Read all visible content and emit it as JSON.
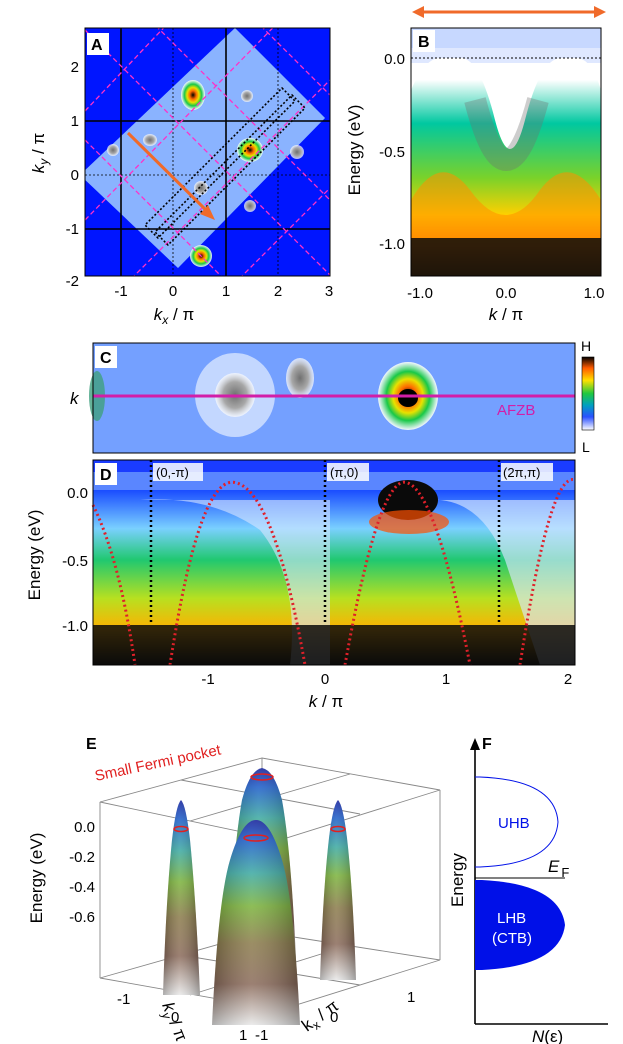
{
  "panels": {
    "A": {
      "letter": "A",
      "xlabel": "k",
      "xlabel_sub": "x",
      "xlabel_tail": " / π",
      "ylabel": "k",
      "ylabel_sub": "y",
      "ylabel_tail": " / π",
      "xticks": [
        "-1",
        "0",
        "1",
        "2",
        "3"
      ],
      "yticks": [
        "2",
        "1",
        "0",
        "-1",
        "-2"
      ],
      "colors": {
        "background": "#0015ff",
        "arrow": "#f06a2a",
        "zone_lines": "#ff30c8"
      }
    },
    "B": {
      "letter": "B",
      "ylabel": "Energy (eV)",
      "xlabel": "k",
      "xlabel_tail": " / π",
      "xticks": [
        "-1.0",
        "0.0",
        "1.0"
      ],
      "yticks": [
        "0.0",
        "-0.5",
        "-1.0"
      ]
    },
    "C": {
      "letter": "C",
      "ylabel": "k",
      "line_label": "AFZB",
      "colorbar_high": "H",
      "colorbar_low": "L",
      "colors": {
        "line": "#d21ea8"
      }
    },
    "D": {
      "letter": "D",
      "ylabel": "Energy (eV)",
      "xlabel": "k",
      "xlabel_tail": " / π",
      "xticks": [
        "-1",
        "0",
        "1",
        "2"
      ],
      "yticks": [
        "0.0",
        "-0.5",
        "-1.0"
      ],
      "markers": [
        "(0,-π)",
        "(π,0)",
        "(2π,π)"
      ],
      "colors": {
        "dispersion": "#e0202a"
      }
    },
    "E": {
      "letter": "E",
      "annotation": "Small Fermi pocket",
      "ylabel": "Energy (eV)",
      "zticks": [
        "0.0",
        "-0.2",
        "-0.4",
        "-0.6"
      ],
      "ky_label": "k",
      "ky_sub": "y",
      "ky_tail": " / π",
      "kx_label": "k",
      "kx_sub": "x",
      "kx_tail": " / π",
      "ky_ticks": [
        "-1",
        "0",
        "1"
      ],
      "kx_ticks": [
        "-1",
        "0",
        "1"
      ],
      "colors": {
        "annotation": "#e02020"
      }
    },
    "F": {
      "letter": "F",
      "ylabel": "Energy",
      "upper_band": "UHB",
      "lower_band_line1": "LHB",
      "lower_band_line2": "(CTB)",
      "fermi_label": "E",
      "fermi_sub": "F",
      "xlabel": "N",
      "xlabel_tail": "(ε)",
      "colors": {
        "bands": "#0010e8"
      }
    }
  }
}
